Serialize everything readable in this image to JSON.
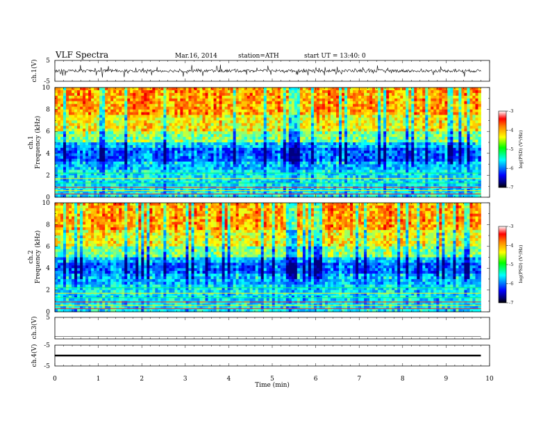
{
  "header": {
    "title": "VLF Spectra",
    "date": "Mar.16, 2014",
    "station": "station=ATH",
    "start": "start UT =  13:40: 0"
  },
  "colors": {
    "axis": "#000000",
    "background": "#ffffff"
  },
  "chart_data": [
    {
      "type": "line",
      "name": "ch1-waveform",
      "ylabel": "ch.1(V)",
      "ylim": [
        -5,
        5
      ],
      "yticks": [
        "5",
        "-5"
      ],
      "xlim": [
        0,
        10
      ],
      "x_end": 9.8,
      "approx_level": 0,
      "spike_amplitude": 2.5
    },
    {
      "type": "heatmap",
      "name": "ch1-spectrogram",
      "ylabel_line1": "ch.1",
      "ylabel_line2": "Frequency (kHz)",
      "ylim": [
        0,
        10
      ],
      "yticks": [
        "0",
        "2",
        "4",
        "6",
        "8",
        "10"
      ],
      "xlim": [
        0,
        10
      ],
      "x_end": 9.8,
      "colorbar": {
        "label": "log(PSD) (V²/Hz)",
        "range": [
          -7,
          -3
        ],
        "ticks": [
          "-3",
          "-4",
          "-5",
          "-6",
          "-7"
        ]
      }
    },
    {
      "type": "heatmap",
      "name": "ch2-spectrogram",
      "ylabel_line1": "ch.2",
      "ylabel_line2": "Frequency (kHz)",
      "ylim": [
        0,
        10
      ],
      "yticks": [
        "0",
        "2",
        "4",
        "6",
        "8",
        "10"
      ],
      "xlim": [
        0,
        10
      ],
      "x_end": 9.8,
      "colorbar": {
        "label": "log(PSD) (V²/Hz)",
        "range": [
          -7,
          -3
        ],
        "ticks": [
          "-3",
          "-4",
          "-5",
          "-6",
          "-7"
        ]
      }
    },
    {
      "type": "line",
      "name": "ch3-waveform",
      "ylabel": "ch.3(V)",
      "ylim": [
        -5,
        5
      ],
      "yticks": [
        "5",
        "-5"
      ],
      "xlim": [
        0,
        10
      ],
      "x_end": 9.8,
      "approx_level": 0
    },
    {
      "type": "line",
      "name": "ch4-waveform",
      "ylabel": "ch.4(V)",
      "ylim": [
        -5,
        5
      ],
      "yticks": [
        "5",
        "-5"
      ],
      "xlim": [
        0,
        10
      ],
      "x_end": 9.8,
      "approx_level": 0,
      "xlabel": "Time (min)",
      "xticks": [
        "0",
        "1",
        "2",
        "3",
        "4",
        "5",
        "6",
        "7",
        "8",
        "9",
        "10"
      ]
    }
  ]
}
